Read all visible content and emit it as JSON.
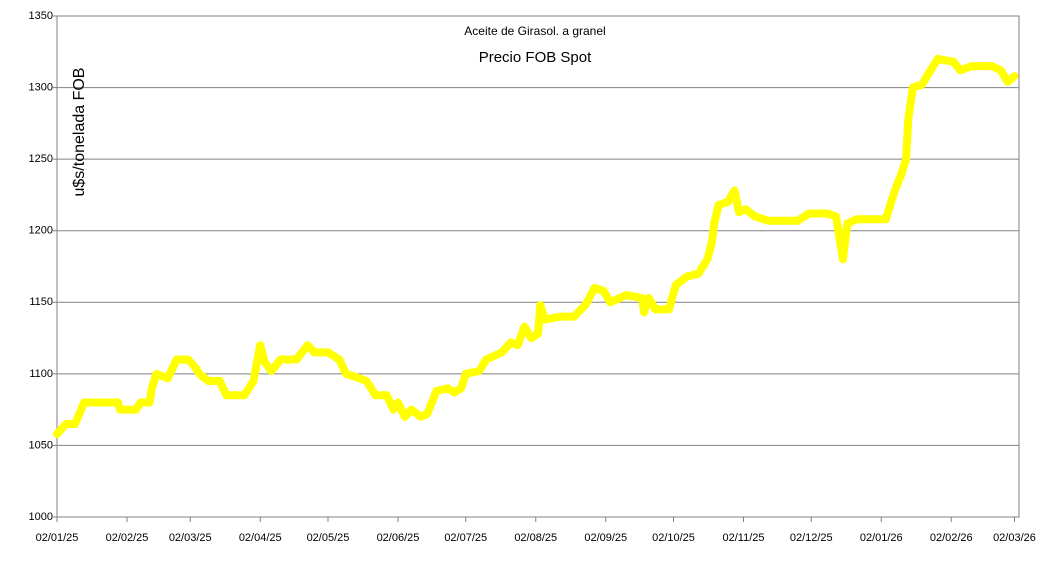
{
  "chart_data": {
    "type": "line",
    "title": "Aceite de Girasol. a granel",
    "subtitle": "Precio FOB Spot",
    "y_label": "u$s/tonelada FOB",
    "x": [
      "2025-01-02",
      "2025-01-06",
      "2025-01-10",
      "2025-01-14",
      "2025-01-29",
      "2025-01-30",
      "2025-02-06",
      "2025-02-08",
      "2025-02-12",
      "2025-02-13",
      "2025-02-15",
      "2025-02-20",
      "2025-02-24",
      "2025-03-01",
      "2025-03-04",
      "2025-03-06",
      "2025-03-10",
      "2025-03-15",
      "2025-03-18",
      "2025-03-26",
      "2025-03-30",
      "2025-04-02",
      "2025-04-04",
      "2025-04-07",
      "2025-04-11",
      "2025-04-18",
      "2025-04-23",
      "2025-04-26",
      "2025-05-02",
      "2025-05-07",
      "2025-05-10",
      "2025-05-14",
      "2025-05-19",
      "2025-05-23",
      "2025-05-28",
      "2025-05-31",
      "2025-06-02",
      "2025-06-05",
      "2025-06-08",
      "2025-06-12",
      "2025-06-15",
      "2025-06-19",
      "2025-06-24",
      "2025-06-27",
      "2025-06-30",
      "2025-07-02",
      "2025-07-08",
      "2025-07-11",
      "2025-07-18",
      "2025-07-22",
      "2025-07-25",
      "2025-07-28",
      "2025-07-31",
      "2025-08-03",
      "2025-08-04",
      "2025-08-06",
      "2025-08-13",
      "2025-08-19",
      "2025-08-24",
      "2025-08-28",
      "2025-09-01",
      "2025-09-04",
      "2025-09-11",
      "2025-09-18",
      "2025-09-19",
      "2025-09-21",
      "2025-09-24",
      "2025-09-30",
      "2025-10-03",
      "2025-10-08",
      "2025-10-13",
      "2025-10-17",
      "2025-10-19",
      "2025-10-20",
      "2025-10-22",
      "2025-10-26",
      "2025-10-29",
      "2025-10-31",
      "2025-11-03",
      "2025-11-07",
      "2025-11-13",
      "2025-11-26",
      "2025-12-01",
      "2025-12-09",
      "2025-12-13",
      "2025-12-16",
      "2025-12-18",
      "2025-12-22",
      "2026-01-04",
      "2026-01-08",
      "2026-01-11",
      "2026-01-13",
      "2026-01-14",
      "2026-01-16",
      "2026-01-20",
      "2026-01-23",
      "2026-01-27",
      "2026-02-03",
      "2026-02-06",
      "2026-02-11",
      "2026-02-20",
      "2026-02-24",
      "2026-02-27",
      "2026-03-02"
    ],
    "series": [
      {
        "name": "Precio FOB Spot",
        "color": "#ffff00",
        "values": [
          1058,
          1065,
          1065,
          1080,
          1080,
          1075,
          1075,
          1080,
          1080,
          1090,
          1100,
          1097,
          1110,
          1110,
          1105,
          1100,
          1095,
          1095,
          1085,
          1085,
          1095,
          1120,
          1108,
          1102,
          1110,
          1110,
          1120,
          1115,
          1115,
          1110,
          1100,
          1098,
          1095,
          1085,
          1085,
          1075,
          1080,
          1070,
          1075,
          1070,
          1072,
          1088,
          1090,
          1087,
          1090,
          1100,
          1102,
          1110,
          1115,
          1122,
          1120,
          1133,
          1125,
          1128,
          1148,
          1138,
          1140,
          1140,
          1148,
          1160,
          1158,
          1150,
          1155,
          1153,
          1143,
          1153,
          1145,
          1145,
          1162,
          1168,
          1170,
          1180,
          1192,
          1205,
          1218,
          1220,
          1228,
          1213,
          1215,
          1210,
          1207,
          1207,
          1212,
          1212,
          1210,
          1180,
          1205,
          1208,
          1208,
          1228,
          1240,
          1250,
          1278,
          1300,
          1302,
          1310,
          1320,
          1318,
          1312,
          1315,
          1315,
          1312,
          1304,
          1308
        ]
      }
    ],
    "xlim": [
      "2025-01-02",
      "2026-03-04"
    ],
    "xticks": [
      {
        "value": "2025-01-02",
        "label": "02/01/25"
      },
      {
        "value": "2025-02-02",
        "label": "02/02/25"
      },
      {
        "value": "2025-03-02",
        "label": "02/03/25"
      },
      {
        "value": "2025-04-02",
        "label": "02/04/25"
      },
      {
        "value": "2025-05-02",
        "label": "02/05/25"
      },
      {
        "value": "2025-06-02",
        "label": "02/06/25"
      },
      {
        "value": "2025-07-02",
        "label": "02/07/25"
      },
      {
        "value": "2025-08-02",
        "label": "02/08/25"
      },
      {
        "value": "2025-09-02",
        "label": "02/09/25"
      },
      {
        "value": "2025-10-02",
        "label": "02/10/25"
      },
      {
        "value": "2025-11-02",
        "label": "02/11/25"
      },
      {
        "value": "2025-12-02",
        "label": "02/12/25"
      },
      {
        "value": "2026-01-02",
        "label": "02/01/26"
      },
      {
        "value": "2026-02-02",
        "label": "02/02/26"
      },
      {
        "value": "2026-03-02",
        "label": "02/03/26"
      }
    ],
    "ylim": [
      1000,
      1350
    ],
    "yticks": [
      1000,
      1050,
      1100,
      1150,
      1200,
      1250,
      1300,
      1350
    ],
    "grid": true
  }
}
